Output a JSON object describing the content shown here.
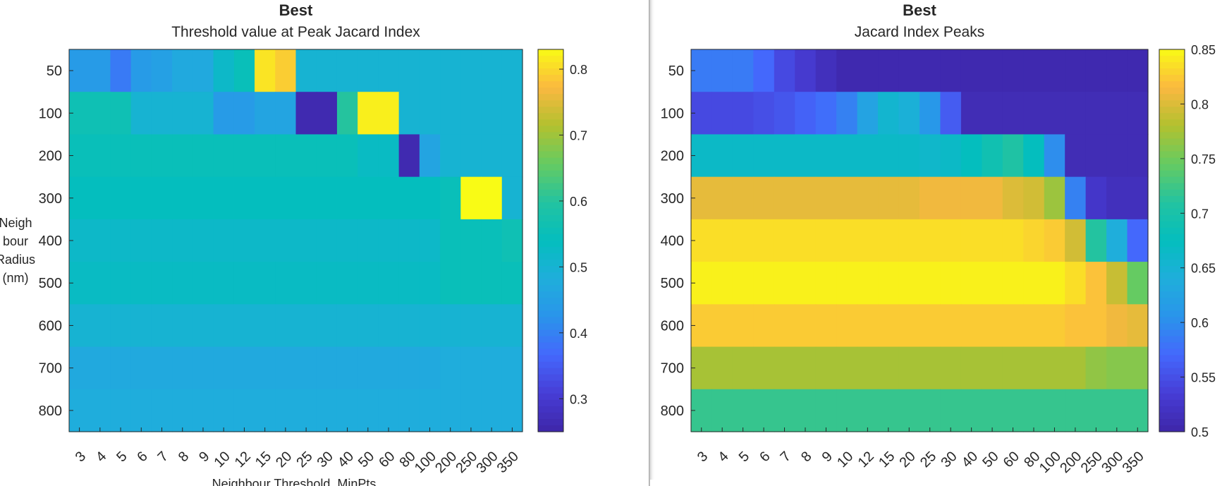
{
  "charts": [
    {
      "title": "Best",
      "subtitle": "Threshold value at Peak Jacard Index",
      "xlabel": "Neighbour Threshold, MinPts.",
      "ylabel_lines": [
        "Neigh",
        "bour",
        "Radius",
        "(nm)"
      ]
    },
    {
      "title": "Best",
      "subtitle": "Jacard Index Peaks",
      "xlabel": "",
      "ylabel_lines": []
    }
  ],
  "chart_data": [
    {
      "type": "heatmap",
      "title": "Best",
      "subtitle": "Threshold value at Peak Jacard Index",
      "xlabel": "Neighbour Threshold, MinPts.",
      "ylabel": "Neighbour Radius (nm)",
      "x": [
        "3",
        "4",
        "5",
        "6",
        "7",
        "8",
        "9",
        "10",
        "12",
        "15",
        "20",
        "25",
        "30",
        "40",
        "50",
        "60",
        "80",
        "100",
        "200",
        "250",
        "300",
        "350"
      ],
      "y": [
        "50",
        "100",
        "200",
        "300",
        "400",
        "500",
        "600",
        "700",
        "800"
      ],
      "colormap": "parula",
      "clim": [
        0.25,
        0.83
      ],
      "colorbar_ticks": [
        "0.3",
        "0.4",
        "0.5",
        "0.6",
        "0.7",
        "0.8"
      ],
      "z": [
        [
          0.44,
          0.44,
          0.39,
          0.44,
          0.45,
          0.47,
          0.47,
          0.52,
          0.55,
          0.81,
          0.79,
          0.5,
          0.5,
          0.5,
          0.5,
          0.5,
          0.5,
          0.5,
          0.5,
          0.5,
          0.5,
          0.5
        ],
        [
          0.56,
          0.56,
          0.56,
          0.5,
          0.5,
          0.5,
          0.5,
          0.44,
          0.44,
          0.46,
          0.46,
          0.26,
          0.26,
          0.6,
          0.82,
          0.82,
          0.5,
          0.5,
          0.5,
          0.5,
          0.5,
          0.5
        ],
        [
          0.55,
          0.55,
          0.55,
          0.55,
          0.55,
          0.55,
          0.55,
          0.55,
          0.55,
          0.55,
          0.55,
          0.55,
          0.55,
          0.55,
          0.53,
          0.53,
          0.26,
          0.46,
          0.5,
          0.5,
          0.5,
          0.5
        ],
        [
          0.54,
          0.54,
          0.54,
          0.54,
          0.54,
          0.54,
          0.54,
          0.54,
          0.54,
          0.54,
          0.54,
          0.54,
          0.54,
          0.54,
          0.54,
          0.54,
          0.54,
          0.54,
          0.55,
          0.83,
          0.83,
          0.5
        ],
        [
          0.52,
          0.52,
          0.52,
          0.52,
          0.52,
          0.52,
          0.52,
          0.52,
          0.52,
          0.52,
          0.52,
          0.52,
          0.52,
          0.52,
          0.52,
          0.52,
          0.52,
          0.52,
          0.55,
          0.55,
          0.55,
          0.56
        ],
        [
          0.53,
          0.53,
          0.53,
          0.53,
          0.53,
          0.53,
          0.53,
          0.53,
          0.53,
          0.53,
          0.53,
          0.53,
          0.53,
          0.53,
          0.53,
          0.53,
          0.53,
          0.53,
          0.55,
          0.55,
          0.55,
          0.55
        ],
        [
          0.5,
          0.5,
          0.5,
          0.5,
          0.5,
          0.5,
          0.5,
          0.5,
          0.5,
          0.5,
          0.5,
          0.5,
          0.5,
          0.5,
          0.5,
          0.5,
          0.5,
          0.5,
          0.5,
          0.5,
          0.5,
          0.5
        ],
        [
          0.47,
          0.47,
          0.47,
          0.47,
          0.47,
          0.47,
          0.47,
          0.47,
          0.47,
          0.47,
          0.47,
          0.47,
          0.47,
          0.47,
          0.47,
          0.47,
          0.47,
          0.47,
          0.48,
          0.48,
          0.48,
          0.48
        ],
        [
          0.48,
          0.48,
          0.48,
          0.48,
          0.48,
          0.48,
          0.48,
          0.48,
          0.48,
          0.48,
          0.48,
          0.48,
          0.48,
          0.48,
          0.48,
          0.48,
          0.48,
          0.48,
          0.48,
          0.48,
          0.48,
          0.48
        ]
      ]
    },
    {
      "type": "heatmap",
      "title": "Best",
      "subtitle": "Jacard Index Peaks",
      "xlabel": "",
      "ylabel": "",
      "x": [
        "3",
        "4",
        "5",
        "6",
        "7",
        "8",
        "9",
        "10",
        "12",
        "15",
        "20",
        "25",
        "30",
        "40",
        "50",
        "60",
        "80",
        "100",
        "200",
        "250",
        "300",
        "350"
      ],
      "y": [
        "50",
        "100",
        "200",
        "300",
        "400",
        "500",
        "600",
        "700",
        "800"
      ],
      "colormap": "parula",
      "clim": [
        0.5,
        0.85
      ],
      "colorbar_ticks": [
        "0.5",
        "0.55",
        "0.6",
        "0.65",
        "0.7",
        "0.75",
        "0.8",
        "0.85"
      ],
      "z": [
        [
          0.585,
          0.585,
          0.585,
          0.57,
          0.545,
          0.53,
          0.515,
          0.505,
          0.505,
          0.505,
          0.505,
          0.505,
          0.505,
          0.505,
          0.505,
          0.505,
          0.505,
          0.505,
          0.505,
          0.505,
          0.505,
          0.505
        ],
        [
          0.545,
          0.545,
          0.545,
          0.55,
          0.555,
          0.565,
          0.575,
          0.59,
          0.625,
          0.655,
          0.645,
          0.61,
          0.56,
          0.51,
          0.51,
          0.51,
          0.51,
          0.51,
          0.51,
          0.51,
          0.51,
          0.51
        ],
        [
          0.665,
          0.665,
          0.665,
          0.665,
          0.665,
          0.665,
          0.665,
          0.665,
          0.665,
          0.665,
          0.665,
          0.66,
          0.665,
          0.675,
          0.69,
          0.705,
          0.675,
          0.6,
          0.51,
          0.51,
          0.51,
          0.51
        ],
        [
          0.805,
          0.805,
          0.805,
          0.805,
          0.805,
          0.805,
          0.805,
          0.805,
          0.805,
          0.805,
          0.805,
          0.81,
          0.81,
          0.81,
          0.81,
          0.8,
          0.795,
          0.77,
          0.59,
          0.525,
          0.515,
          0.515
        ],
        [
          0.835,
          0.835,
          0.835,
          0.835,
          0.835,
          0.835,
          0.835,
          0.835,
          0.835,
          0.835,
          0.835,
          0.835,
          0.835,
          0.835,
          0.835,
          0.835,
          0.83,
          0.825,
          0.795,
          0.71,
          0.64,
          0.57
        ],
        [
          0.845,
          0.845,
          0.845,
          0.845,
          0.845,
          0.845,
          0.845,
          0.845,
          0.845,
          0.845,
          0.845,
          0.845,
          0.845,
          0.845,
          0.845,
          0.845,
          0.845,
          0.845,
          0.835,
          0.82,
          0.79,
          0.745
        ],
        [
          0.825,
          0.825,
          0.825,
          0.825,
          0.825,
          0.825,
          0.825,
          0.825,
          0.825,
          0.825,
          0.825,
          0.825,
          0.825,
          0.825,
          0.825,
          0.825,
          0.825,
          0.825,
          0.82,
          0.82,
          0.81,
          0.805
        ],
        [
          0.775,
          0.775,
          0.775,
          0.775,
          0.775,
          0.775,
          0.775,
          0.775,
          0.775,
          0.775,
          0.775,
          0.775,
          0.775,
          0.775,
          0.775,
          0.775,
          0.775,
          0.775,
          0.775,
          0.765,
          0.76,
          0.76
        ],
        [
          0.72,
          0.72,
          0.72,
          0.72,
          0.72,
          0.72,
          0.72,
          0.72,
          0.72,
          0.72,
          0.72,
          0.72,
          0.72,
          0.72,
          0.72,
          0.72,
          0.72,
          0.72,
          0.72,
          0.72,
          0.72,
          0.72
        ]
      ]
    }
  ]
}
